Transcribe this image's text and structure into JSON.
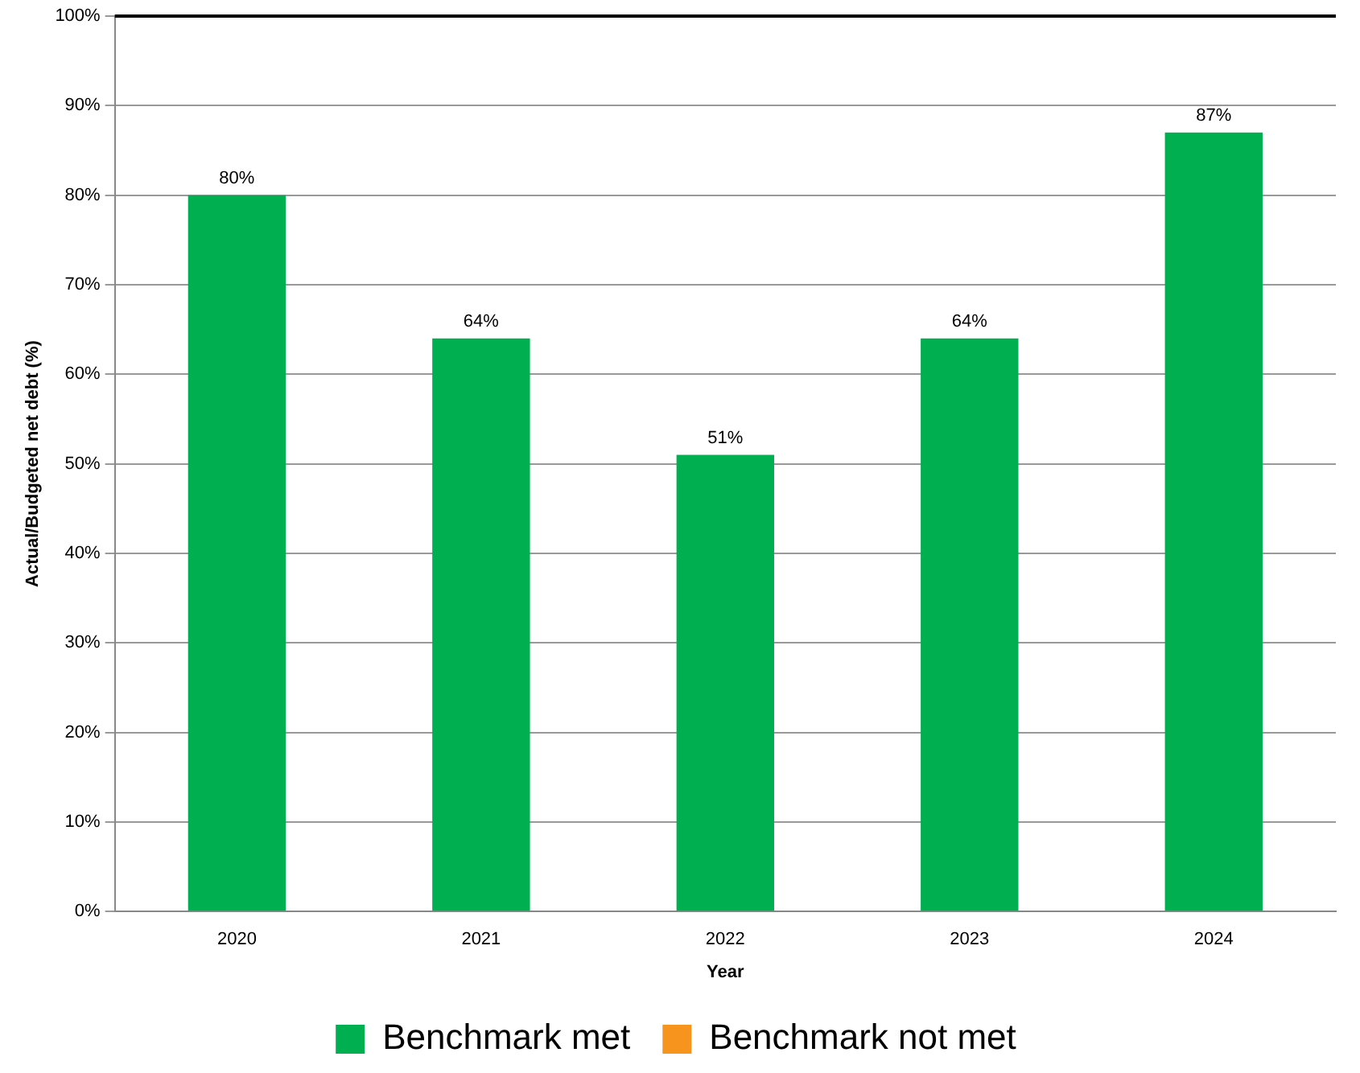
{
  "chart_data": {
    "type": "bar",
    "xlabel": "Year",
    "ylabel": "Actual/Budgeted net debt (%)",
    "categories": [
      "2020",
      "2021",
      "2022",
      "2023",
      "2024"
    ],
    "series": [
      {
        "name": "Benchmark met",
        "color": "#00b050",
        "values": [
          80,
          64,
          51,
          64,
          87
        ],
        "value_labels": [
          "80%",
          "64%",
          "51%",
          "64%",
          "87%"
        ]
      },
      {
        "name": "Benchmark not met",
        "color": "#f7941d",
        "values": [
          null,
          null,
          null,
          null,
          null
        ]
      }
    ],
    "ylim": [
      0,
      100
    ],
    "yticks": [
      {
        "value": 0,
        "label": "0%"
      },
      {
        "value": 10,
        "label": "10%"
      },
      {
        "value": 20,
        "label": "20%"
      },
      {
        "value": 30,
        "label": "30%"
      },
      {
        "value": 40,
        "label": "40%"
      },
      {
        "value": 50,
        "label": "50%"
      },
      {
        "value": 60,
        "label": "60%"
      },
      {
        "value": 70,
        "label": "70%"
      },
      {
        "value": 80,
        "label": "80%"
      },
      {
        "value": 90,
        "label": "90%"
      },
      {
        "value": 100,
        "label": "100%"
      }
    ],
    "ref_lines": [
      {
        "axis": "y",
        "value": 100,
        "color": "#000000"
      }
    ],
    "grid": "y",
    "legend": "bottom"
  }
}
